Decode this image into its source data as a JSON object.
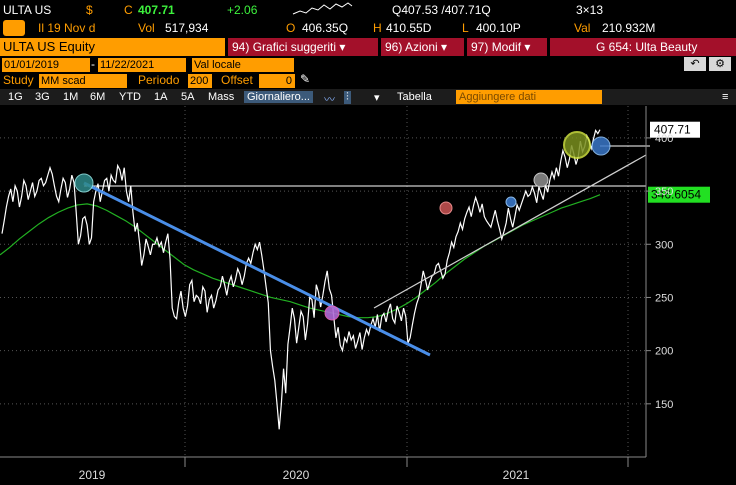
{
  "header": {
    "symbol": "ULTA US",
    "currency": "$",
    "c_label": "C",
    "price": "407.71",
    "change": "+2.06",
    "bid_ask": "Q407.53 /407.71Q",
    "size": "3×13",
    "date_label": "Il 19 Nov d",
    "vol_label": "Vol",
    "volume": "517,934",
    "open_label": "O",
    "open": "406.35Q",
    "high_label": "H",
    "high": "410.55D",
    "low_label": "L",
    "low": "400.10P",
    "val_label": "Val",
    "value": "210.932M"
  },
  "toolbar": {
    "ticker": "ULTA US Equity",
    "btn1_num": "94)",
    "btn1_label": "Grafici suggeriti",
    "btn2_num": "96)",
    "btn2_label": "Azioni",
    "btn3_num": "97)",
    "btn3_label": "Modif",
    "company": "G 654: Ulta Beauty",
    "date_from": "01/01/2019",
    "date_to": "11/22/2021",
    "currency_mode": "Val locale",
    "study_label": "Study",
    "study_value": "MM scad",
    "period_label": "Periodo",
    "period_value": "200",
    "offset_label": "Offset",
    "offset_value": "0"
  },
  "tabs": [
    "1G",
    "3G",
    "1M",
    "6M",
    "YTD",
    "1A",
    "5A",
    "Mass",
    "Giornaliero..."
  ],
  "table_label": "Tabella",
  "add_data_placeholder": "Aggiungere dati",
  "chart_data": {
    "type": "line",
    "x_ticks": [
      "2019",
      "2020",
      "2021"
    ],
    "y_ticks": [
      150,
      200,
      250,
      300,
      350,
      400
    ],
    "ylim": [
      100,
      430
    ],
    "last_price_label": "407.71",
    "ma_label": "346.6054",
    "colors": {
      "price": "#ffffff",
      "ma": "#22b022",
      "trend_down": "#4a8ee8",
      "trend_up": "#cfcfcf"
    },
    "series": [
      {
        "values": [
          310,
          322,
          335,
          345,
          352,
          340,
          355,
          350,
          335,
          345,
          360,
          355,
          342,
          350,
          358,
          345,
          350,
          360,
          362,
          355,
          358,
          365,
          372,
          366,
          355,
          345,
          340,
          352,
          362,
          358,
          344,
          352,
          365,
          358,
          330,
          300,
          308,
          324,
          326,
          318,
          300,
          306,
          340,
          350,
          357,
          340,
          350,
          360,
          362,
          350,
          365,
          360,
          358,
          374,
          370,
          360,
          372,
          350,
          340,
          355,
          330,
          312,
          320,
          302,
          280,
          290,
          305,
          298,
          290,
          300,
          300,
          306,
          298,
          302,
          292,
          302,
          310,
          286,
          240,
          232,
          230,
          246,
          256,
          240,
          232,
          242,
          262,
          266,
          246,
          252,
          250,
          244,
          260,
          256,
          236,
          248,
          252,
          240,
          247,
          257,
          260,
          270,
          262,
          252,
          264,
          270,
          260,
          267,
          277,
          272,
          262,
          270,
          282,
          287,
          282,
          292,
          300,
          295,
          302,
          290,
          276,
          260,
          245,
          200,
          185,
          172,
          150,
          126,
          150,
          183,
          160,
          206,
          222,
          240,
          230,
          207,
          222,
          237,
          232,
          210,
          225,
          250,
          248,
          231,
          262,
          255,
          241,
          252,
          265,
          275,
          258,
          252,
          232,
          212,
          222,
          205,
          200,
          212,
          208,
          218,
          210,
          214,
          202,
          209,
          217,
          201,
          212,
          220,
          215,
          224,
          230,
          222,
          234,
          218,
          232,
          235,
          227,
          238,
          244,
          230,
          226,
          242,
          236,
          228,
          240,
          232,
          207,
          212,
          224,
          235,
          244,
          250,
          262,
          275,
          267,
          257,
          264,
          270,
          272,
          280,
          282,
          275,
          268,
          272,
          285,
          292,
          302,
          297,
          307,
          312,
          320,
          314,
          324,
          330,
          335,
          326,
          336,
          344,
          338,
          330,
          338,
          326,
          322,
          319,
          316,
          324,
          332,
          322,
          314,
          305,
          312,
          320,
          334,
          324,
          316,
          326,
          337,
          332,
          338,
          344,
          350,
          345,
          347,
          354,
          348,
          339,
          354,
          348,
          342,
          356,
          349,
          360,
          368,
          362,
          372,
          364,
          378,
          388,
          382,
          372,
          380,
          393,
          385,
          375,
          382,
          397,
          387,
          392,
          402,
          397,
          390,
          399,
          407,
          404,
          407.71
        ]
      },
      {
        "values": [
          290,
          297,
          305,
          312,
          319,
          325,
          330,
          334,
          337,
          338,
          336,
          332,
          327,
          322,
          316,
          309,
          302,
          295,
          288,
          281,
          276,
          272,
          268,
          265,
          262,
          259,
          256,
          253,
          250,
          248,
          246,
          243,
          240,
          238,
          236,
          234,
          232,
          231,
          231,
          232,
          235,
          239,
          244,
          250,
          257,
          264,
          272,
          279,
          286,
          292,
          298,
          303,
          308,
          313,
          318,
          322,
          326,
          330,
          334,
          337,
          340,
          343,
          346.6054
        ]
      }
    ]
  }
}
